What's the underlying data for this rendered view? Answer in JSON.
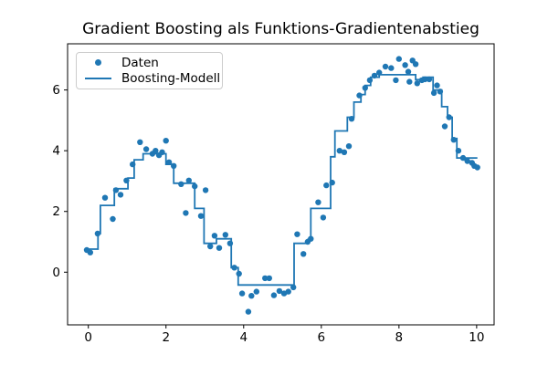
{
  "title": "Gradient Boosting als Funktions-Gradientenabstieg",
  "legend": {
    "items": [
      {
        "label": "Daten",
        "marker": "dot"
      },
      {
        "label": "Boosting-Modell",
        "marker": "line"
      }
    ]
  },
  "colors": {
    "series": "#1f77b4",
    "axis": "#000000",
    "background": "#ffffff",
    "legend_border": "#cccccc"
  },
  "chart_data": {
    "type": "scatter",
    "title": "Gradient Boosting als Funktions-Gradientenabstieg",
    "xlabel": "",
    "ylabel": "",
    "xlim": [
      -0.534,
      10.45
    ],
    "ylim": [
      -1.734,
      7.52
    ],
    "xticks": [
      0,
      2,
      4,
      6,
      8,
      10
    ],
    "yticks": [
      0,
      2,
      4,
      6
    ],
    "grid": false,
    "legend_position": "upper left",
    "series": [
      {
        "name": "Daten",
        "type": "scatter",
        "color": "#1f77b4",
        "points": [
          [
            -0.04,
            0.73
          ],
          [
            0.05,
            0.65
          ],
          [
            0.24,
            1.27
          ],
          [
            0.43,
            2.45
          ],
          [
            0.63,
            1.75
          ],
          [
            0.71,
            2.7
          ],
          [
            0.83,
            2.55
          ],
          [
            0.98,
            3.02
          ],
          [
            1.14,
            3.55
          ],
          [
            1.33,
            4.28
          ],
          [
            1.49,
            4.05
          ],
          [
            1.65,
            3.9
          ],
          [
            1.73,
            4.0
          ],
          [
            1.82,
            3.85
          ],
          [
            1.9,
            3.95
          ],
          [
            2.0,
            4.33
          ],
          [
            2.08,
            3.62
          ],
          [
            2.2,
            3.5
          ],
          [
            2.39,
            2.9
          ],
          [
            2.51,
            1.95
          ],
          [
            2.59,
            3.02
          ],
          [
            2.74,
            2.83
          ],
          [
            2.9,
            1.85
          ],
          [
            3.02,
            2.7
          ],
          [
            3.14,
            0.85
          ],
          [
            3.25,
            1.2
          ],
          [
            3.37,
            0.8
          ],
          [
            3.53,
            1.23
          ],
          [
            3.65,
            0.95
          ],
          [
            3.76,
            0.15
          ],
          [
            3.88,
            -0.05
          ],
          [
            3.96,
            -0.7
          ],
          [
            4.12,
            -1.3
          ],
          [
            4.2,
            -0.78
          ],
          [
            4.33,
            -0.64
          ],
          [
            4.55,
            -0.2
          ],
          [
            4.66,
            -0.2
          ],
          [
            4.78,
            -0.76
          ],
          [
            4.92,
            -0.62
          ],
          [
            5.04,
            -0.7
          ],
          [
            5.15,
            -0.64
          ],
          [
            5.28,
            -0.5
          ],
          [
            5.38,
            1.25
          ],
          [
            5.54,
            0.6
          ],
          [
            5.65,
            1.0
          ],
          [
            5.73,
            1.1
          ],
          [
            5.92,
            2.3
          ],
          [
            6.05,
            1.8
          ],
          [
            6.13,
            2.86
          ],
          [
            6.28,
            2.95
          ],
          [
            6.47,
            4.0
          ],
          [
            6.59,
            3.95
          ],
          [
            6.71,
            4.15
          ],
          [
            6.78,
            5.05
          ],
          [
            6.98,
            5.82
          ],
          [
            7.13,
            6.07
          ],
          [
            7.25,
            6.32
          ],
          [
            7.37,
            6.47
          ],
          [
            7.49,
            6.57
          ],
          [
            7.65,
            6.77
          ],
          [
            7.8,
            6.72
          ],
          [
            7.92,
            6.32
          ],
          [
            8.0,
            7.02
          ],
          [
            8.16,
            6.82
          ],
          [
            8.24,
            6.6
          ],
          [
            8.27,
            6.27
          ],
          [
            8.35,
            6.97
          ],
          [
            8.43,
            6.85
          ],
          [
            8.47,
            6.22
          ],
          [
            8.59,
            6.32
          ],
          [
            8.67,
            6.35
          ],
          [
            8.78,
            6.35
          ],
          [
            8.9,
            5.9
          ],
          [
            8.98,
            6.15
          ],
          [
            9.06,
            5.95
          ],
          [
            9.18,
            4.8
          ],
          [
            9.29,
            5.1
          ],
          [
            9.41,
            4.36
          ],
          [
            9.53,
            4.0
          ],
          [
            9.65,
            3.76
          ],
          [
            9.76,
            3.66
          ],
          [
            9.88,
            3.6
          ],
          [
            9.94,
            3.5
          ],
          [
            10.02,
            3.45
          ]
        ]
      },
      {
        "name": "Boosting-Modell",
        "type": "step",
        "color": "#1f77b4",
        "segments": [
          [
            -0.05,
            0.25,
            0.76
          ],
          [
            0.25,
            0.31,
            1.27
          ],
          [
            0.31,
            0.67,
            2.2
          ],
          [
            0.67,
            1.02,
            2.75
          ],
          [
            1.02,
            1.18,
            3.1
          ],
          [
            1.18,
            1.41,
            3.7
          ],
          [
            1.41,
            2.0,
            3.9
          ],
          [
            2.0,
            2.2,
            3.55
          ],
          [
            2.2,
            2.74,
            2.93
          ],
          [
            2.74,
            2.98,
            2.1
          ],
          [
            2.98,
            3.3,
            0.95
          ],
          [
            3.3,
            3.68,
            1.1
          ],
          [
            3.68,
            3.86,
            0.15
          ],
          [
            3.86,
            5.3,
            -0.42
          ],
          [
            5.3,
            5.66,
            0.95
          ],
          [
            5.66,
            5.73,
            1.08
          ],
          [
            5.73,
            6.24,
            2.1
          ],
          [
            6.24,
            6.35,
            3.8
          ],
          [
            6.35,
            6.67,
            4.65
          ],
          [
            6.67,
            6.84,
            5.1
          ],
          [
            6.84,
            7.02,
            5.6
          ],
          [
            7.02,
            7.13,
            5.85
          ],
          [
            7.13,
            7.27,
            6.15
          ],
          [
            7.27,
            7.49,
            6.42
          ],
          [
            7.49,
            8.43,
            6.5
          ],
          [
            8.43,
            8.62,
            6.34
          ],
          [
            8.62,
            8.88,
            6.42
          ],
          [
            8.88,
            9.1,
            6.0
          ],
          [
            9.1,
            9.25,
            5.45
          ],
          [
            9.25,
            9.37,
            5.1
          ],
          [
            9.37,
            9.49,
            4.4
          ],
          [
            9.49,
            10.02,
            3.76
          ]
        ]
      }
    ]
  }
}
